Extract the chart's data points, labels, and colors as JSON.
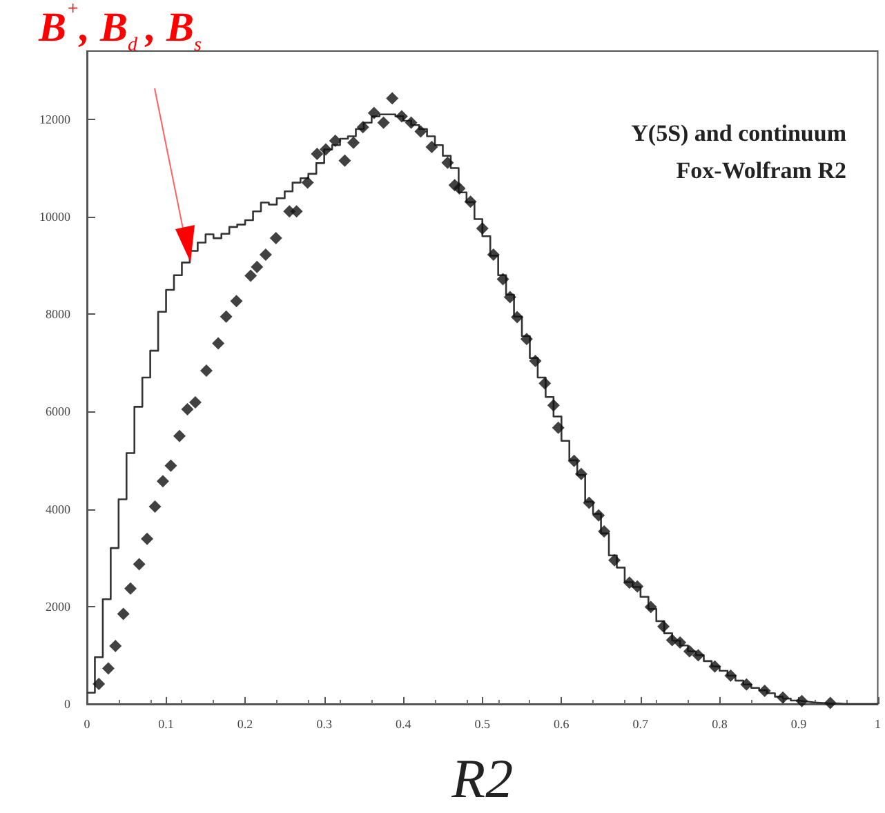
{
  "chart_data": {
    "type": "histogram",
    "xlabel": "R2",
    "xlim": [
      0,
      1
    ],
    "xticks": [
      0,
      0.1,
      0.2,
      0.3,
      0.4,
      0.5,
      0.6,
      0.7,
      0.8,
      0.9,
      1
    ],
    "ylim": [
      0,
      13400
    ],
    "yticks": [
      0,
      2000,
      4000,
      6000,
      8000,
      10000,
      12000
    ],
    "grid": false,
    "annotations": [
      "Y(5S) and continuum",
      "Fox-Wolfram R2",
      "B$^{+}$, B$_{d}$, B$_{s}$"
    ],
    "series": [
      {
        "type": "histogram",
        "color": "#333333",
        "line_style": "solid",
        "bins": [
          0,
          0.01,
          0.02,
          0.03,
          0.04,
          0.05,
          0.06,
          0.07,
          0.08,
          0.09,
          0.1,
          0.11,
          0.12,
          0.13,
          0.14,
          0.15,
          0.16,
          0.17,
          0.18,
          0.19,
          0.2,
          0.21,
          0.22,
          0.23,
          0.24,
          0.25,
          0.26,
          0.27,
          0.28,
          0.29,
          0.3,
          0.31,
          0.32,
          0.33,
          0.34,
          0.35,
          0.36,
          0.37,
          0.38,
          0.39,
          0.4,
          0.41,
          0.42,
          0.43,
          0.44,
          0.45,
          0.46,
          0.47,
          0.48,
          0.49,
          0.5,
          0.51,
          0.52,
          0.53,
          0.54,
          0.55,
          0.56,
          0.57,
          0.58,
          0.59,
          0.6,
          0.61,
          0.62,
          0.63,
          0.64,
          0.65,
          0.66,
          0.67,
          0.68,
          0.69,
          0.7,
          0.71,
          0.72,
          0.73,
          0.74,
          0.75,
          0.76,
          0.77,
          0.78,
          0.79,
          0.8,
          0.81,
          0.82,
          0.83,
          0.84,
          0.85,
          0.86,
          0.87,
          0.88,
          0.89,
          0.9,
          0.91,
          0.92,
          0.93,
          0.94,
          0.95,
          0.96,
          0.97,
          0.98,
          0.99,
          1
        ],
        "values": [
          230,
          960,
          2150,
          3200,
          4200,
          5150,
          6100,
          6700,
          7250,
          8050,
          8500,
          8800,
          9060,
          9300,
          9470,
          9640,
          9560,
          9650,
          9790,
          9840,
          9930,
          10110,
          10290,
          10250,
          10380,
          10520,
          10700,
          10790,
          10880,
          11100,
          11380,
          11470,
          11600,
          11650,
          11800,
          11930,
          12060,
          12100,
          12100,
          12060,
          11970,
          11880,
          11800,
          11650,
          11470,
          11250,
          11000,
          10500,
          10300,
          9950,
          9600,
          9200,
          8800,
          8400,
          7950,
          7550,
          7100,
          6700,
          6300,
          5900,
          5400,
          5000,
          4700,
          4150,
          3900,
          3500,
          3050,
          2800,
          2500,
          2400,
          2200,
          1950,
          1700,
          1450,
          1300,
          1200,
          1080,
          1000,
          880,
          770,
          680,
          580,
          480,
          400,
          330,
          280,
          220,
          150,
          110,
          70,
          50,
          30,
          20,
          10,
          10,
          0,
          0,
          0,
          0,
          0
        ]
      },
      {
        "type": "scatter",
        "color": "#111111",
        "marker": "diamond",
        "x": [
          0.015,
          0.027,
          0.036,
          0.046,
          0.055,
          0.066,
          0.076,
          0.086,
          0.096,
          0.106,
          0.117,
          0.127,
          0.137,
          0.151,
          0.166,
          0.176,
          0.189,
          0.207,
          0.215,
          0.226,
          0.239,
          0.256,
          0.265,
          0.279,
          0.291,
          0.302,
          0.314,
          0.326,
          0.337,
          0.349,
          0.363,
          0.375,
          0.386,
          0.398,
          0.41,
          0.422,
          0.436,
          0.456,
          0.465,
          0.471,
          0.485,
          0.5,
          0.514,
          0.526,
          0.535,
          0.544,
          0.556,
          0.567,
          0.579,
          0.59,
          0.596,
          0.616,
          0.625,
          0.635,
          0.647,
          0.654,
          0.667,
          0.686,
          0.696,
          0.713,
          0.729,
          0.74,
          0.75,
          0.762,
          0.773,
          0.794,
          0.814,
          0.834,
          0.857,
          0.88,
          0.904,
          0.94
        ],
        "values": [
          410,
          730,
          1190,
          1850,
          2370,
          2870,
          3390,
          4050,
          4570,
          4890,
          5500,
          6050,
          6190,
          6840,
          7400,
          7950,
          8270,
          8790,
          8970,
          9220,
          9560,
          10110,
          10110,
          10700,
          11290,
          11380,
          11560,
          11150,
          11520,
          11840,
          12130,
          11930,
          12430,
          12060,
          11930,
          11750,
          11430,
          11110,
          10650,
          10580,
          10310,
          9760,
          9220,
          8720,
          8350,
          7940,
          7490,
          7040,
          6580,
          6130,
          5670,
          4990,
          4720,
          4130,
          3870,
          3540,
          2950,
          2490,
          2410,
          1990,
          1590,
          1310,
          1260,
          1080,
          1000,
          770,
          580,
          400,
          270,
          130,
          60,
          20
        ]
      }
    ]
  }
}
